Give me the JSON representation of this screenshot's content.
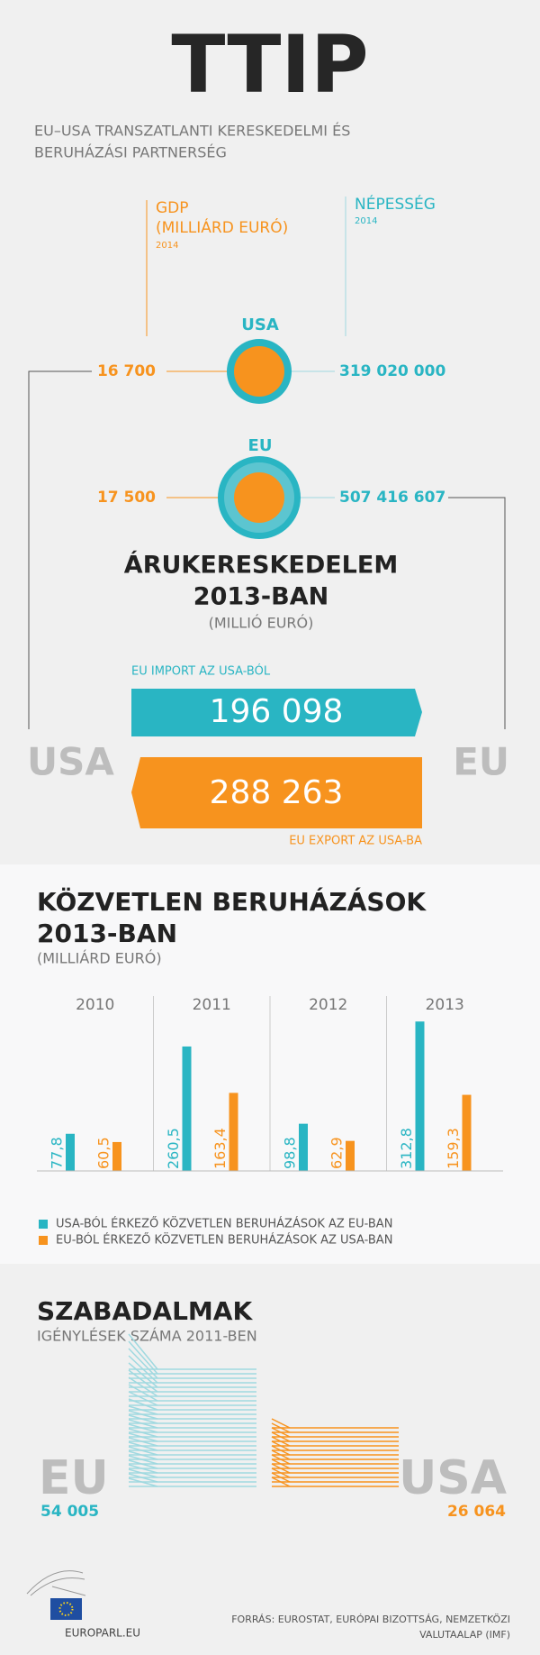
{
  "header": {
    "title": "TTIP",
    "subtitle": [
      "EU–USA TRANSZATLANTI KERESKEDELMI ÉS",
      "BERUHÁZÁSI PARTNERSÉG"
    ]
  },
  "overview": {
    "gdp_label": [
      "GDP",
      "(MILLIÁRD EURÓ)"
    ],
    "gdp_year": "2014",
    "population_label": "NÉPESSÉG",
    "population_year": "2014",
    "usa": {
      "name": "USA",
      "gdp": "16 700",
      "population": "319 020 000"
    },
    "eu": {
      "name": "EU",
      "gdp": "17 500",
      "population": "507 416 607"
    }
  },
  "trade": {
    "title": [
      "ÁRUKERESKEDELEM",
      "2013-BAN"
    ],
    "unit": "(MILLIÓ EURÓ)",
    "import_label": "EU IMPORT AZ USA-BÓL",
    "import_value": "196 098",
    "export_value": "288 263",
    "export_label": "EU EXPORT AZ USA-BA",
    "left": "USA",
    "right": "EU"
  },
  "chart_data": {
    "type": "bar",
    "title": [
      "KÖZVETLEN BERUHÁZÁSOK",
      "2013-BAN"
    ],
    "subtitle": "(MILLIÁRD EURÓ)",
    "categories": [
      "2010",
      "2011",
      "2012",
      "2013"
    ],
    "series": [
      {
        "name": "USA-BÓL ÉRKEZŐ KÖZVETLEN BERUHÁZÁSOK AZ EU-BAN",
        "color": "#29b5c3",
        "values": [
          77.8,
          260.5,
          98.8,
          312.8
        ],
        "value_labels": [
          "77,8",
          "260,5",
          "98,8",
          "312,8"
        ]
      },
      {
        "name": "EU-BÓL ÉRKEZŐ KÖZVETLEN BERUHÁZÁSOK AZ USA-BAN",
        "color": "#f7931e",
        "values": [
          60.5,
          163.4,
          62.9,
          159.3
        ],
        "value_labels": [
          "60,5",
          "163,4",
          "62,9",
          "159,3"
        ]
      }
    ]
  },
  "patents": {
    "title": "SZABADALMAK",
    "subtitle": "IGÉNYLÉSEK SZÁMA 2011-BEN",
    "eu": {
      "name": "EU",
      "value": "54 005"
    },
    "usa": {
      "name": "USA",
      "value": "26 064"
    }
  },
  "footer": {
    "site": "EUROPARL.EU",
    "source": [
      "FORRÁS: EUROSTAT, EURÓPAI BIZOTTSÁG, NEMZETKÖZI",
      "VALUTAALAP (IMF)"
    ]
  }
}
